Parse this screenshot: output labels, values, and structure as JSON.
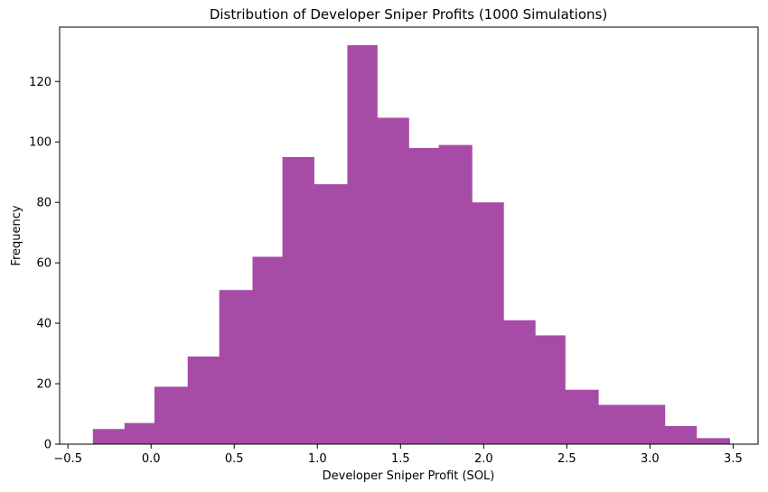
{
  "chart_data": {
    "type": "bar",
    "title": "Distribution of Developer Sniper Profits (1000 Simulations)",
    "xlabel": "Developer Sniper Profit (SOL)",
    "ylabel": "Frequency",
    "bar_color": "#a64ca6",
    "xlim": [
      -0.55,
      3.65
    ],
    "ylim": [
      0,
      138
    ],
    "grid": false,
    "x_ticks": [
      -0.5,
      0.0,
      0.5,
      1.0,
      1.5,
      2.0,
      2.5,
      3.0,
      3.5
    ],
    "x_tick_labels": [
      "−0.5",
      "0.0",
      "0.5",
      "1.0",
      "1.5",
      "2.0",
      "2.5",
      "3.0",
      "3.5"
    ],
    "y_ticks": [
      0,
      20,
      40,
      60,
      80,
      100,
      120
    ],
    "y_tick_labels": [
      "0",
      "20",
      "40",
      "60",
      "80",
      "100",
      "120"
    ],
    "bin_edges": [
      -0.35,
      -0.16,
      0.02,
      0.22,
      0.41,
      0.61,
      0.79,
      0.98,
      1.18,
      1.36,
      1.55,
      1.73,
      1.93,
      2.12,
      2.31,
      2.49,
      2.69,
      2.88,
      3.09,
      3.28,
      3.48
    ],
    "values": [
      5,
      7,
      19,
      29,
      51,
      62,
      95,
      86,
      132,
      108,
      98,
      99,
      80,
      41,
      36,
      18,
      13,
      13,
      6,
      2
    ]
  }
}
